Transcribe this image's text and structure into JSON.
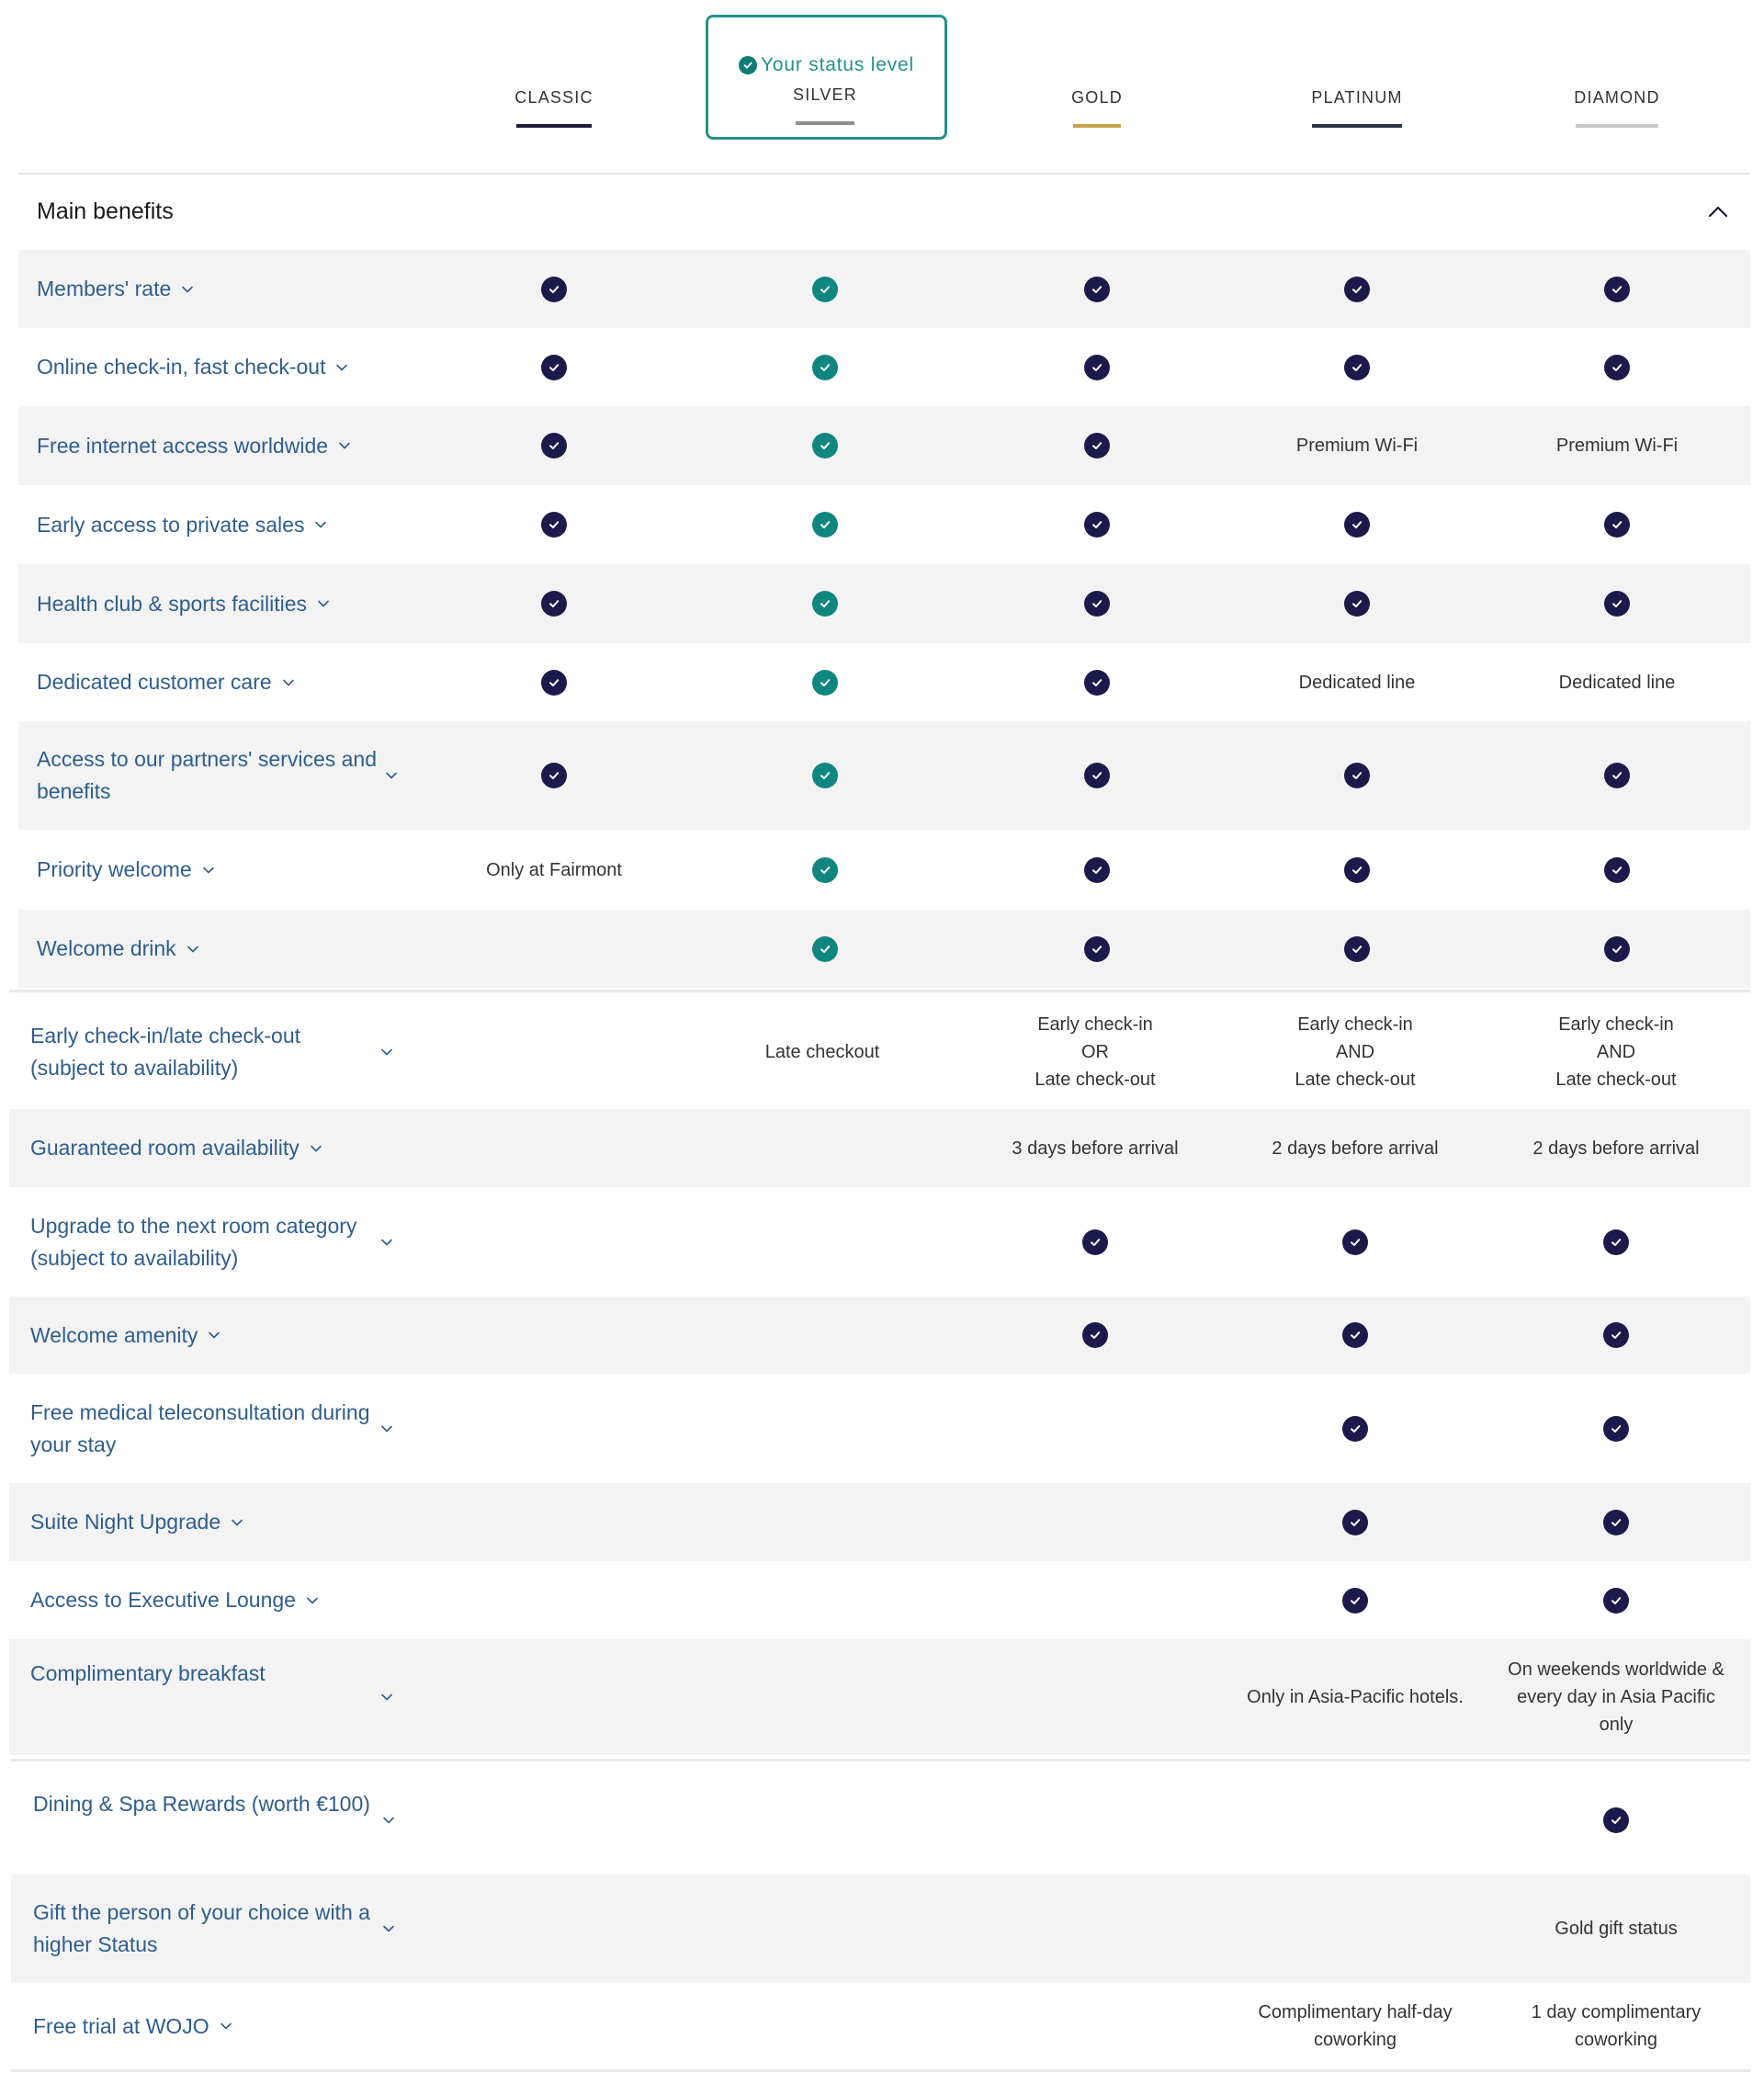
{
  "header": {
    "status_label": "Your status level",
    "tiers": [
      {
        "name": "CLASSIC",
        "bar_color": "#1c1a3a"
      },
      {
        "name": "SILVER",
        "bar_color": "#8e8e8e"
      },
      {
        "name": "GOLD",
        "bar_color": "#c9a54a"
      },
      {
        "name": "PLATINUM",
        "bar_color": "#2e3340"
      },
      {
        "name": "DIAMOND",
        "bar_color": "#c6c6c6"
      }
    ],
    "current_tier": "SILVER"
  },
  "section": {
    "title": "Main benefits",
    "collapse_icon": "chevron-up-icon"
  },
  "colors": {
    "check_navy": "#1c1a4a",
    "check_teal": "#0f877e",
    "label_blue": "#2f5d8c",
    "accent_teal": "#23928a",
    "row_grey": "#f3f3f4"
  },
  "benefits": [
    {
      "label": "Members' rate",
      "values": [
        "check",
        "check",
        "check",
        "check",
        "check"
      ]
    },
    {
      "label": "Online check-in, fast check-out",
      "values": [
        "check",
        "check",
        "check",
        "check",
        "check"
      ]
    },
    {
      "label": "Free internet access worldwide",
      "values": [
        "check",
        "check",
        "check",
        "Premium Wi-Fi",
        "Premium Wi-Fi"
      ]
    },
    {
      "label": "Early access to private sales",
      "values": [
        "check",
        "check",
        "check",
        "check",
        "check"
      ]
    },
    {
      "label": "Health club & sports facilities",
      "values": [
        "check",
        "check",
        "check",
        "check",
        "check"
      ]
    },
    {
      "label": "Dedicated customer care",
      "values": [
        "check",
        "check",
        "check",
        "Dedicated line",
        "Dedicated line"
      ]
    },
    {
      "label": "Access to our partners' services and benefits",
      "values": [
        "check",
        "check",
        "check",
        "check",
        "check"
      ]
    },
    {
      "label": "Priority welcome",
      "values": [
        "Only at Fairmont",
        "check",
        "check",
        "check",
        "check"
      ]
    },
    {
      "label": "Welcome drink",
      "values": [
        "",
        "check",
        "check",
        "check",
        "check"
      ]
    },
    {
      "label": "Early check-in/late check-out (subject to availability)",
      "values": [
        "",
        "Late checkout",
        "Early check-in\nOR\nLate check-out",
        "Early check-in\nAND\nLate check-out",
        "Early check-in\nAND\nLate check-out"
      ]
    },
    {
      "label": "Guaranteed room availability",
      "values": [
        "",
        "",
        "3 days before arrival",
        "2 days before arrival",
        "2 days before arrival"
      ]
    },
    {
      "label": "Upgrade to the next room category (subject to availability)",
      "values": [
        "",
        "",
        "check",
        "check",
        "check"
      ]
    },
    {
      "label": "Welcome amenity",
      "values": [
        "",
        "",
        "check",
        "check",
        "check"
      ]
    },
    {
      "label": "Free medical teleconsultation during your stay",
      "values": [
        "",
        "",
        "",
        "check",
        "check"
      ]
    },
    {
      "label": "Suite Night Upgrade",
      "values": [
        "",
        "",
        "",
        "check",
        "check"
      ]
    },
    {
      "label": "Access to Executive Lounge",
      "values": [
        "",
        "",
        "",
        "check",
        "check"
      ]
    },
    {
      "label": "Complimentary breakfast",
      "values": [
        "",
        "",
        "",
        "Only in Asia-Pacific hotels.",
        "On weekends worldwide &\nevery day in Asia Pacific\nonly"
      ]
    },
    {
      "label": "Dining & Spa Rewards (worth €100)",
      "values": [
        "",
        "",
        "",
        "",
        "check"
      ]
    },
    {
      "label": "Gift the person of your choice with a higher Status",
      "values": [
        "",
        "",
        "",
        "",
        "Gold gift status"
      ]
    },
    {
      "label": "Free trial at WOJO",
      "values": [
        "",
        "",
        "",
        "Complimentary half-day\ncoworking",
        "1 day complimentary\ncoworking"
      ]
    }
  ]
}
